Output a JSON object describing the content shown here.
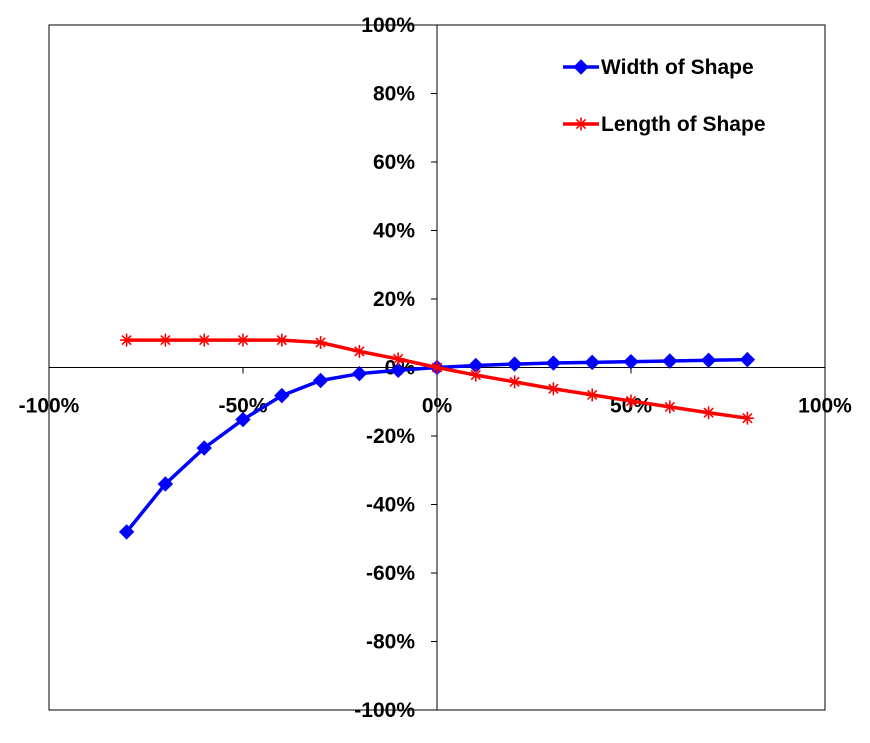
{
  "chart_data": {
    "type": "scatter",
    "title": "",
    "xlabel": "",
    "ylabel": "",
    "xlim": [
      -1.0,
      1.0
    ],
    "ylim": [
      -1.0,
      1.0
    ],
    "x_ticks": [
      "-100%",
      "-50%",
      "0%",
      "50%",
      "100%"
    ],
    "y_ticks": [
      "100%",
      "80%",
      "60%",
      "40%",
      "20%",
      "0%",
      "-20%",
      "-40%",
      "-60%",
      "-80%",
      "-100%"
    ],
    "grid": false,
    "legend_position": "top-right",
    "series": [
      {
        "name": "Width of Shape",
        "color": "#0000FF",
        "marker": "diamond",
        "points": [
          [
            -0.8,
            -0.48
          ],
          [
            -0.7,
            -0.34
          ],
          [
            -0.6,
            -0.235
          ],
          [
            -0.5,
            -0.152
          ],
          [
            -0.4,
            -0.082
          ],
          [
            -0.3,
            -0.038
          ],
          [
            -0.2,
            -0.018
          ],
          [
            -0.1,
            -0.008
          ],
          [
            0.0,
            0.0
          ],
          [
            0.1,
            0.006
          ],
          [
            0.2,
            0.01
          ],
          [
            0.3,
            0.013
          ],
          [
            0.4,
            0.015
          ],
          [
            0.5,
            0.017
          ],
          [
            0.6,
            0.019
          ],
          [
            0.7,
            0.021
          ],
          [
            0.8,
            0.023
          ]
        ]
      },
      {
        "name": "Length of Shape",
        "color": "#FF0000",
        "marker": "asterisk",
        "points": [
          [
            -0.8,
            0.08
          ],
          [
            -0.7,
            0.08
          ],
          [
            -0.6,
            0.08
          ],
          [
            -0.5,
            0.08
          ],
          [
            -0.4,
            0.08
          ],
          [
            -0.3,
            0.073
          ],
          [
            -0.2,
            0.047
          ],
          [
            -0.1,
            0.025
          ],
          [
            0.0,
            0.0
          ],
          [
            0.1,
            -0.022
          ],
          [
            0.2,
            -0.042
          ],
          [
            0.3,
            -0.062
          ],
          [
            0.4,
            -0.08
          ],
          [
            0.5,
            -0.098
          ],
          [
            0.6,
            -0.115
          ],
          [
            0.7,
            -0.132
          ],
          [
            0.8,
            -0.148
          ]
        ]
      }
    ]
  }
}
